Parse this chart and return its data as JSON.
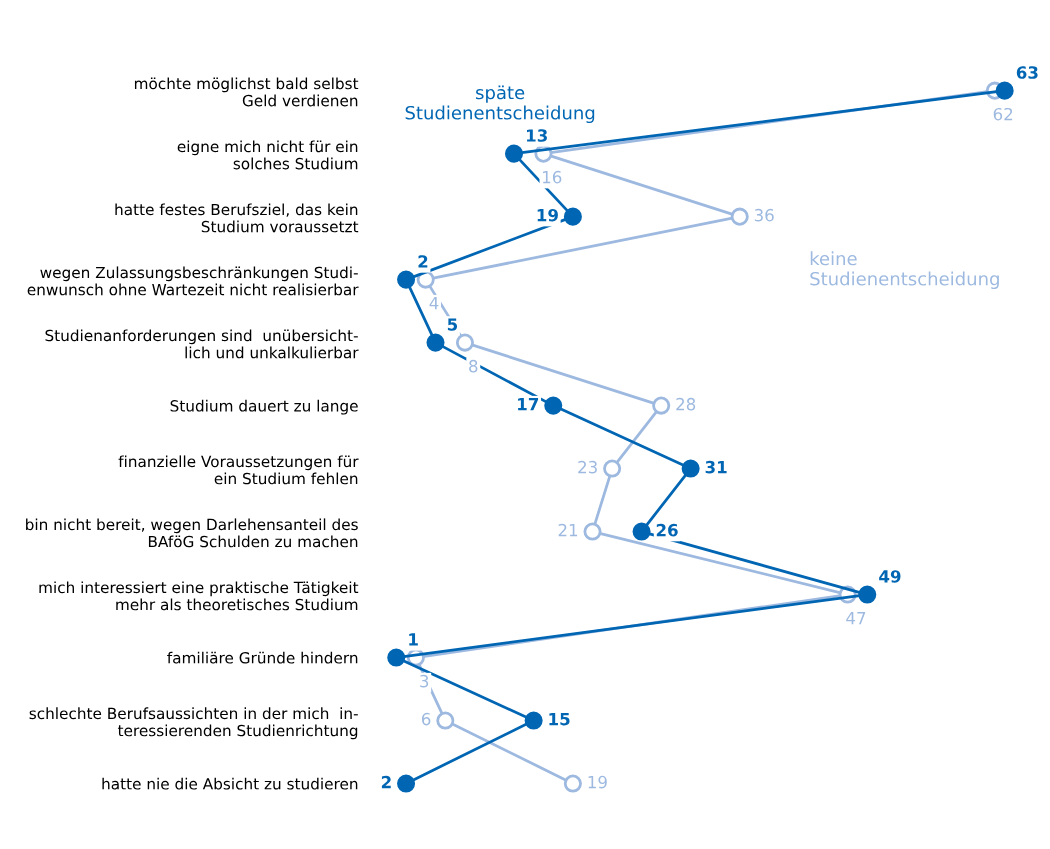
{
  "chart_data": {
    "type": "line",
    "orientation": "horizontal",
    "categories": [
      "möchte möglichst bald selbst\nGeld verdienen",
      "eigne mich nicht für ein\nsolches Studium",
      "hatte festes Berufsziel, das kein\nStudium voraussetzt",
      "wegen Zulassungsbeschränkungen Studi-\nenwunsch ohne Wartezeit nicht realisierbar",
      "Studienanforderungen sind  unübersicht-\nlich und unkalkulierbar",
      "Studium dauert zu lange",
      "finanzielle Voraussetzungen für\nein Studium fehlen",
      "bin nicht bereit, wegen Darlehensanteil des\nBAföG Schulden zu machen",
      "mich interessiert eine praktische Tätigkeit\nmehr als theoretisches Studium",
      "familiäre Gründe hindern",
      "schlechte Berufsaussichten in der mich  in-\nteressierenden Studienrichtung",
      "hatte nie die Absicht zu studieren"
    ],
    "series": [
      {
        "name": "späte\nStudienentscheidung",
        "color": "#0066b3",
        "values": [
          63,
          13,
          19,
          2,
          5,
          17,
          31,
          26,
          49,
          1,
          15,
          2
        ]
      },
      {
        "name": "keine\nStudienentscheidung",
        "color": "#9db9e0",
        "values": [
          62,
          16,
          36,
          4,
          8,
          28,
          23,
          21,
          47,
          3,
          6,
          19
        ]
      }
    ],
    "data_labels": true,
    "marker": "circle",
    "line_style": "solid",
    "legend": false,
    "grid": false,
    "tick_labels": "y"
  }
}
